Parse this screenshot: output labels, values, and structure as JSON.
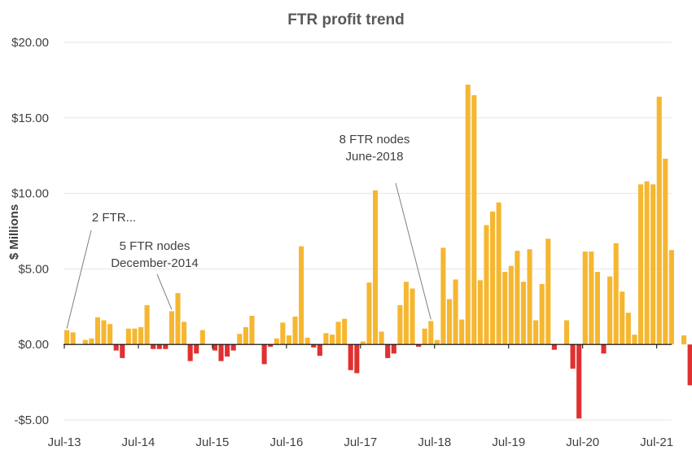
{
  "chart_data": {
    "type": "bar",
    "title": "FTR profit trend",
    "ylabel": "$ Millions",
    "xlabel": "",
    "ylim": [
      -5,
      20
    ],
    "yticks": [
      -5,
      0,
      5,
      10,
      15,
      20
    ],
    "ytick_labels": [
      "-$5.00",
      "$0.00",
      "$5.00",
      "$10.00",
      "$15.00",
      "$20.00"
    ],
    "xtick_labels": [
      {
        "label": "Jul-13",
        "index": 0
      },
      {
        "label": "Jul-14",
        "index": 12
      },
      {
        "label": "Jul-15",
        "index": 24
      },
      {
        "label": "Jul-16",
        "index": 36
      },
      {
        "label": "Jul-17",
        "index": 48
      },
      {
        "label": "Jul-18",
        "index": 60
      },
      {
        "label": "Jul-19",
        "index": 72
      },
      {
        "label": "Jul-20",
        "index": 84
      },
      {
        "label": "Jul-21",
        "index": 96
      }
    ],
    "grid": true,
    "colors": {
      "positive": "#F5B731",
      "negative": "#E03030",
      "grid": "#e6e6e6",
      "text": "#404040"
    },
    "values": [
      0.95,
      0.8,
      0,
      0.3,
      0.4,
      1.8,
      1.6,
      1.35,
      -0.4,
      -0.9,
      1.05,
      1.05,
      1.15,
      2.6,
      -0.3,
      -0.3,
      -0.3,
      2.2,
      3.4,
      1.5,
      -1.1,
      -0.6,
      0.95,
      0,
      -0.4,
      -1.1,
      -0.8,
      -0.4,
      0.7,
      1.15,
      1.9,
      0,
      -1.3,
      -0.15,
      0.4,
      1.45,
      0.6,
      1.85,
      6.5,
      0.45,
      -0.2,
      -0.75,
      0.75,
      0.65,
      1.5,
      1.7,
      -1.7,
      -1.9,
      0.2,
      4.1,
      10.2,
      0.85,
      -0.9,
      -0.6,
      2.6,
      4.15,
      3.7,
      -0.15,
      1.05,
      1.55,
      0.3,
      6.4,
      3.0,
      4.3,
      1.65,
      17.2,
      16.5,
      4.25,
      7.9,
      8.8,
      9.4,
      4.8,
      5.2,
      6.2,
      4.15,
      6.3,
      1.6,
      4.0,
      7.0,
      -0.35,
      0,
      1.6,
      -1.6,
      -4.9,
      6.15,
      6.15,
      4.8,
      -0.6,
      4.5,
      6.7,
      3.5,
      2.1,
      0.65,
      10.6,
      10.8,
      10.6,
      16.4,
      12.3,
      6.25,
      0,
      0.6,
      -2.7,
      -2.95
    ],
    "annotations": [
      {
        "lines": [
          "2 FTR..."
        ],
        "target_index": 0
      },
      {
        "lines": [
          "5 FTR nodes",
          "December-2014"
        ],
        "target_index": 17
      },
      {
        "lines": [
          "8 FTR nodes",
          "June-2018"
        ],
        "target_index": 59
      }
    ]
  }
}
